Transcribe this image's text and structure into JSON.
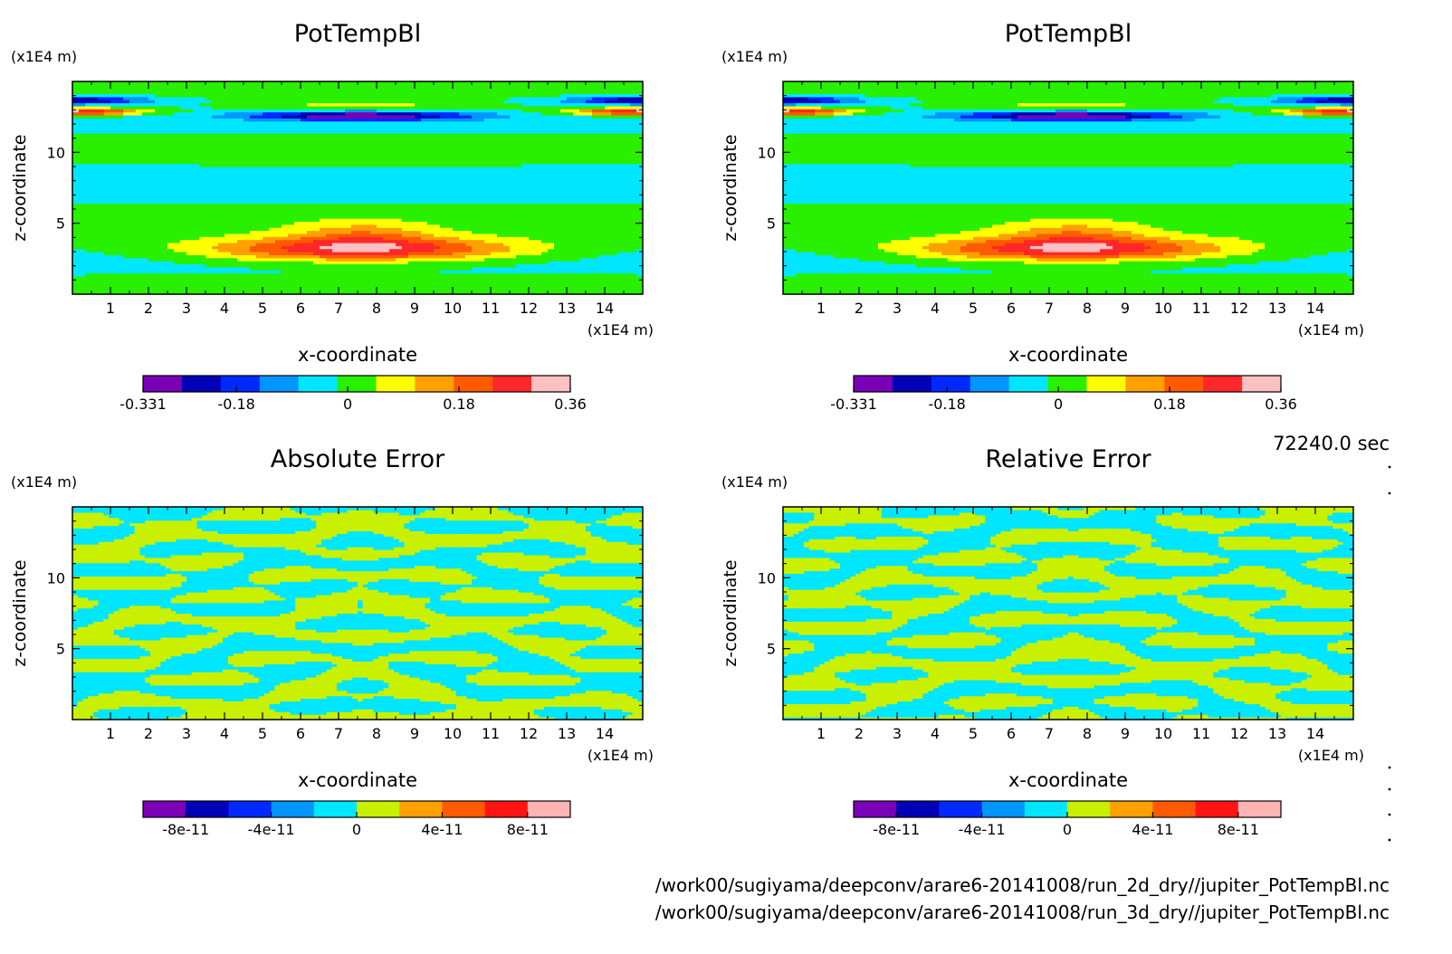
{
  "time_label": "72240.0 sec",
  "file_paths": [
    "/work00/sugiyama/deepconv/arare6-20141008/run_2d_dry//jupiter_PotTempBl.nc",
    "/work00/sugiyama/deepconv/arare6-20141008/run_3d_dry//jupiter_PotTempBl.nc"
  ],
  "colors": {
    "temp_levels": [
      "#7a00b8",
      "#0000b4",
      "#0028ff",
      "#0096ff",
      "#00e6ff",
      "#28f000",
      "#ffff00",
      "#ffa000",
      "#ff5a00",
      "#ff2828",
      "#ffc0c0"
    ],
    "error_levels": [
      "#7a00b8",
      "#0000b4",
      "#0028ff",
      "#0096ff",
      "#00e6ff",
      "#c8f000",
      "#ffa000",
      "#ff5a00",
      "#ff1414",
      "#ffb4b4"
    ]
  },
  "chart_data": [
    {
      "type": "heatmap",
      "title": "PotTempBl",
      "xlabel": "x-coordinate",
      "ylabel": "z-coordinate",
      "x_unit": "(x1E4 m)",
      "y_unit": "(x1E4 m)",
      "xlim": [
        0,
        15
      ],
      "ylim": [
        0,
        15
      ],
      "x_ticks": [
        "1",
        "2",
        "3",
        "4",
        "5",
        "6",
        "7",
        "8",
        "9",
        "10",
        "11",
        "12",
        "13",
        "14"
      ],
      "y_ticks": [
        "5",
        "10"
      ],
      "colorbar_ticks": [
        "-0.331",
        "-0.18",
        "0",
        "0.18",
        "0.36"
      ],
      "colorbar_range": [
        -0.331,
        0.36
      ],
      "field": "temperature"
    },
    {
      "type": "heatmap",
      "title": "PotTempBl",
      "xlabel": "x-coordinate",
      "ylabel": "z-coordinate",
      "x_unit": "(x1E4 m)",
      "y_unit": "(x1E4 m)",
      "xlim": [
        0,
        15
      ],
      "ylim": [
        0,
        15
      ],
      "x_ticks": [
        "1",
        "2",
        "3",
        "4",
        "5",
        "6",
        "7",
        "8",
        "9",
        "10",
        "11",
        "12",
        "13",
        "14"
      ],
      "y_ticks": [
        "5",
        "10"
      ],
      "colorbar_ticks": [
        "-0.331",
        "-0.18",
        "0",
        "0.18",
        "0.36"
      ],
      "colorbar_range": [
        -0.331,
        0.36
      ],
      "field": "temperature"
    },
    {
      "type": "heatmap",
      "title": "Absolute Error",
      "xlabel": "x-coordinate",
      "ylabel": "z-coordinate",
      "x_unit": "(x1E4 m)",
      "y_unit": "(x1E4 m)",
      "xlim": [
        0,
        15
      ],
      "ylim": [
        0,
        15
      ],
      "x_ticks": [
        "1",
        "2",
        "3",
        "4",
        "5",
        "6",
        "7",
        "8",
        "9",
        "10",
        "11",
        "12",
        "13",
        "14"
      ],
      "y_ticks": [
        "5",
        "10"
      ],
      "colorbar_ticks": [
        "-8e-11",
        "-4e-11",
        "0",
        "4e-11",
        "8e-11"
      ],
      "colorbar_range": [
        -1e-10,
        1e-10
      ],
      "field": "error"
    },
    {
      "type": "heatmap",
      "title": "Relative Error",
      "xlabel": "x-coordinate",
      "ylabel": "z-coordinate",
      "x_unit": "(x1E4 m)",
      "y_unit": "(x1E4 m)",
      "xlim": [
        0,
        15
      ],
      "ylim": [
        0,
        15
      ],
      "x_ticks": [
        "1",
        "2",
        "3",
        "4",
        "5",
        "6",
        "7",
        "8",
        "9",
        "10",
        "11",
        "12",
        "13",
        "14"
      ],
      "y_ticks": [
        "5",
        "10"
      ],
      "colorbar_ticks": [
        "-8e-11",
        "-4e-11",
        "0",
        "4e-11",
        "8e-11"
      ],
      "colorbar_range": [
        -1e-10,
        1e-10
      ],
      "field": "error"
    }
  ]
}
